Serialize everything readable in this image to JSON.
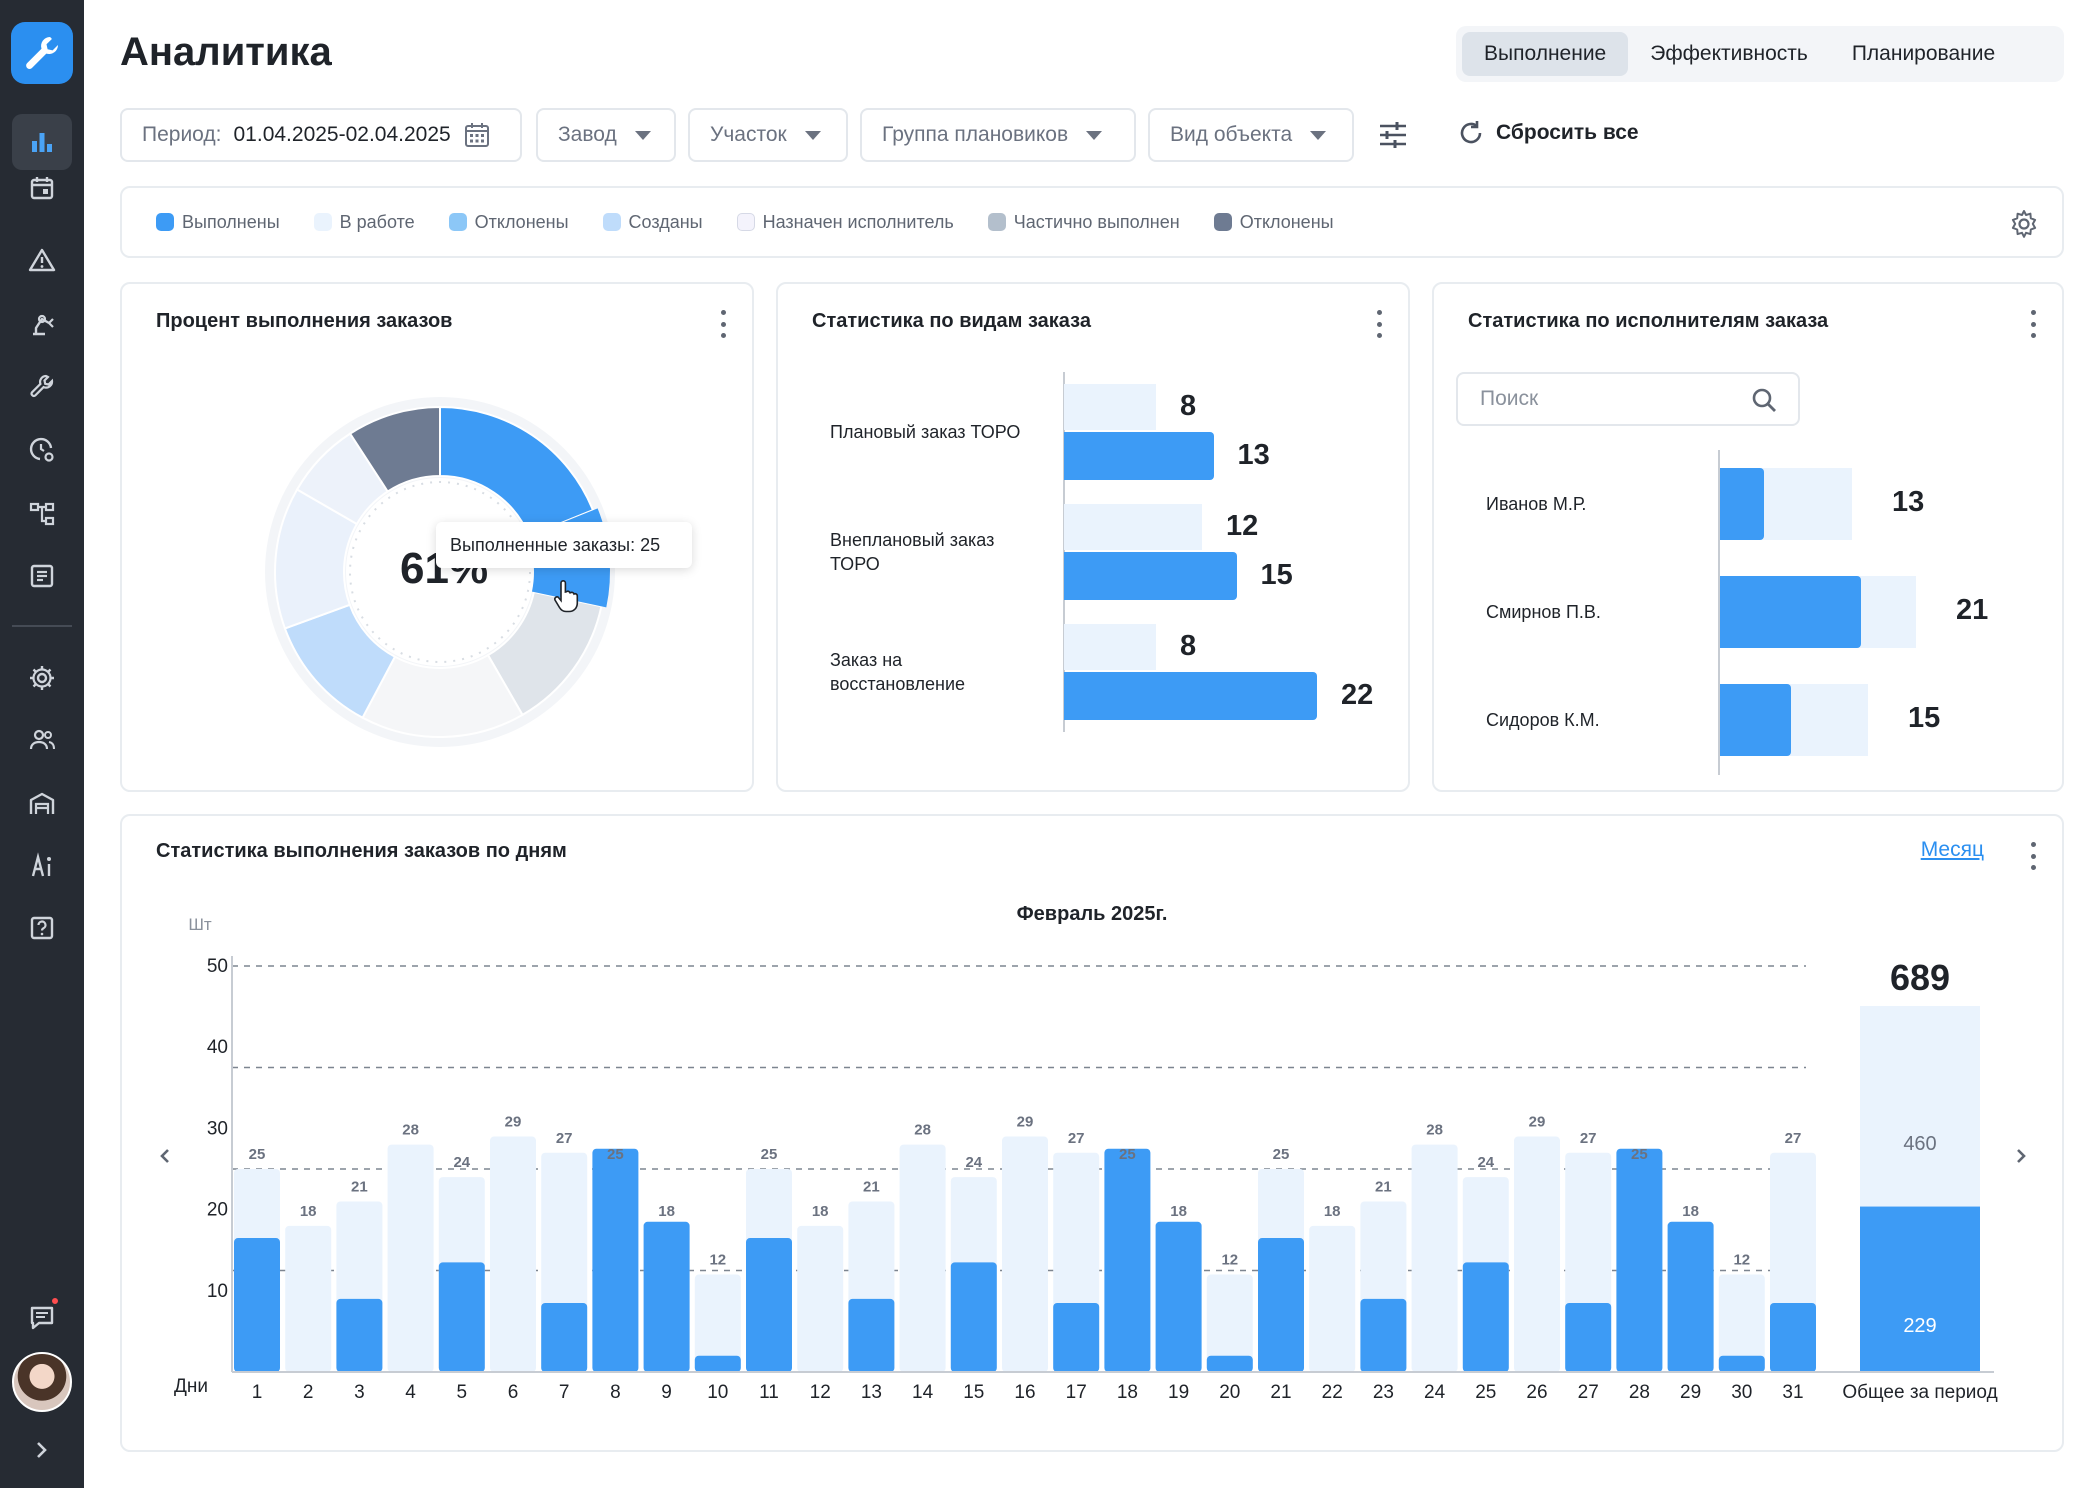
{
  "sidebar": {
    "items": [
      {
        "icon": "bar-chart-icon",
        "active": true
      },
      {
        "icon": "calendar-icon"
      },
      {
        "icon": "warning-icon"
      },
      {
        "icon": "robot-arm-icon"
      },
      {
        "icon": "wrench-icon"
      },
      {
        "icon": "clock-gear-icon"
      },
      {
        "icon": "hierarchy-icon"
      },
      {
        "icon": "document-list-icon"
      },
      {
        "icon": "gear-icon"
      },
      {
        "icon": "users-icon"
      },
      {
        "icon": "warehouse-icon"
      },
      {
        "icon": "accessibility-icon"
      },
      {
        "icon": "help-icon"
      }
    ],
    "chat_icon": "chat-icon",
    "expand_icon": "chevron-right-icon"
  },
  "header": {
    "title": "Аналитика",
    "tabs": [
      "Выполнение",
      "Эффективность",
      "Планирование"
    ],
    "active_tab": "Выполнение"
  },
  "filters": {
    "period_label": "Период:",
    "period_value": "01.04.2025-02.04.2025",
    "plant": "Завод",
    "area": "Участок",
    "planner_group": "Группа плановиков",
    "object_type": "Вид объекта",
    "reset": "Сбросить все"
  },
  "legend": [
    {
      "label": "Выполнены",
      "color": "#3d9bf5"
    },
    {
      "label": "В работе",
      "color": "#eaf3fd"
    },
    {
      "label": "Отклонены",
      "color": "#8cc7f7"
    },
    {
      "label": "Созданы",
      "color": "#bfdcfb"
    },
    {
      "label": "Назначен исполнитель",
      "color": "#f4f3fc"
    },
    {
      "label": "Частично выполнен",
      "color": "#b3bfcc"
    },
    {
      "label": "Отклонены",
      "color": "#6e7b92"
    }
  ],
  "donut_card": {
    "title": "Процент выполнения заказов",
    "center_text": "61%",
    "tooltip": "Выполненные заказы: 25"
  },
  "types_card": {
    "title": "Статистика по видам заказа",
    "rows": [
      {
        "label": "Плановый заказ ТОРО",
        "light": 8,
        "dark": 13
      },
      {
        "label": "Внеплановый заказ ТОРО",
        "light": 12,
        "dark": 15
      },
      {
        "label": "Заказ на восстановление",
        "light": 8,
        "dark": 22
      }
    ]
  },
  "executors_card": {
    "title": "Статистика по исполнителям заказа",
    "search_placeholder": "Поиск",
    "rows": [
      {
        "label": "Иванов М.Р.",
        "value": 13,
        "dark_fraction": 0.33
      },
      {
        "label": "Смирнов П.В.",
        "value": 21,
        "dark_fraction": 0.72
      },
      {
        "label": "Сидоров К.М.",
        "value": 15,
        "dark_fraction": 0.48
      }
    ]
  },
  "daily_card": {
    "title": "Статистика выполнения заказов по дням",
    "period_link": "Месяц"
  },
  "chart_data": {
    "type": "bar",
    "title": "Февраль 2025г.",
    "ylabel": "Шт",
    "xlabel": "Дни",
    "ylim": [
      0,
      50
    ],
    "yticks": [
      10,
      20,
      30,
      40,
      50
    ],
    "categories": [
      "1",
      "2",
      "3",
      "4",
      "5",
      "6",
      "7",
      "8",
      "9",
      "10",
      "11",
      "12",
      "13",
      "14",
      "15",
      "16",
      "17",
      "18",
      "19",
      "20",
      "21",
      "22",
      "23",
      "24",
      "25",
      "26",
      "27",
      "28",
      "29",
      "30",
      "31"
    ],
    "series": [
      {
        "values": [
          25,
          18,
          21,
          28,
          24,
          29,
          27,
          25,
          18,
          12,
          25,
          18,
          21,
          28,
          24,
          29,
          27,
          25,
          18,
          12,
          25,
          18,
          21,
          28,
          24,
          29,
          27,
          25,
          18,
          12,
          27
        ]
      },
      {
        "values": [
          16.5,
          0,
          9,
          0,
          13.5,
          0,
          8.5,
          27.5,
          18.5,
          2,
          16.5,
          0,
          9,
          0,
          13.5,
          0,
          8.5,
          27.5,
          18.5,
          2,
          16.5,
          0,
          9,
          0,
          13.5,
          0,
          8.5,
          27.5,
          18.5,
          2,
          8.5
        ]
      }
    ],
    "total": {
      "label": "Общее за период",
      "value": 689,
      "light": 460,
      "dark": 229
    }
  }
}
